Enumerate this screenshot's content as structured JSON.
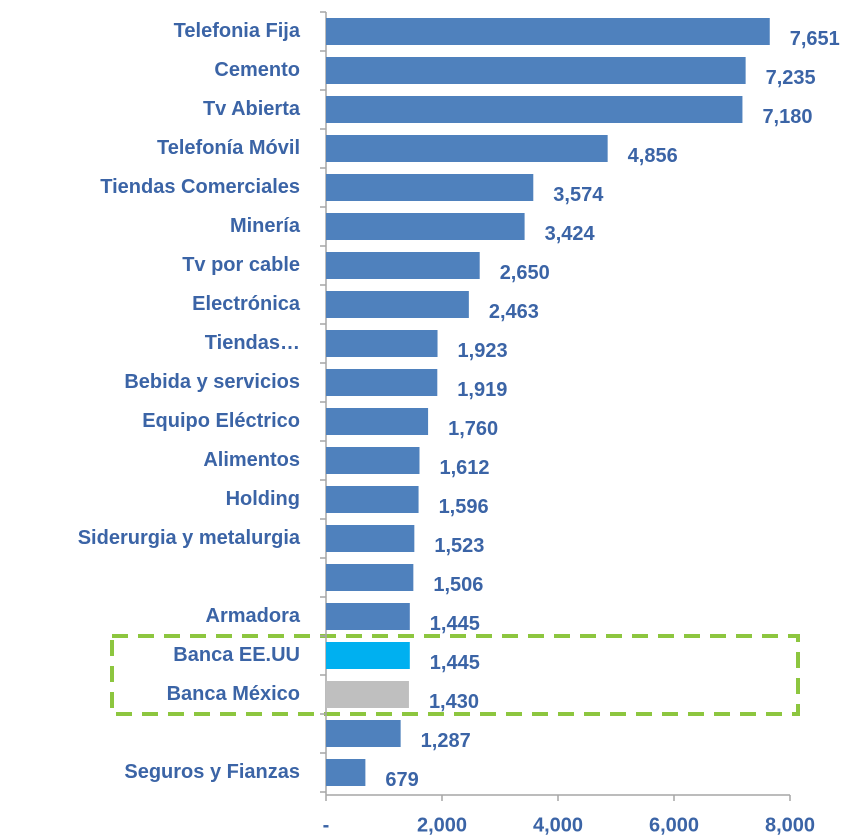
{
  "chart_data": {
    "type": "barh",
    "categories": [
      "Telefonia Fija",
      "Cemento",
      "Tv Abierta",
      "Telefonía Móvil",
      "Tiendas Comerciales",
      "Minería",
      "Tv por cable",
      "Electrónica",
      "Tiendas…",
      "Bebida y servicios",
      "Equipo Eléctrico",
      "Alimentos",
      "Holding",
      "Siderurgia y metalurgia",
      null,
      "Armadora",
      "Banca EE.UU",
      "Banca México",
      null,
      "Seguros y Fianzas"
    ],
    "values": [
      7651,
      7235,
      7180,
      4856,
      3574,
      3424,
      2650,
      2463,
      1923,
      1919,
      1760,
      1612,
      1596,
      1523,
      1506,
      1445,
      1445,
      1430,
      1287,
      679
    ],
    "value_labels": [
      "7,651",
      "7,235",
      "7,180",
      "4,856",
      "3,574",
      "3,424",
      "2,650",
      "2,463",
      "1,923",
      "1,919",
      "1,760",
      "1,612",
      "1,596",
      "1,523",
      "1,506",
      "1,445",
      "1,445",
      "1,430",
      "1,287",
      "679"
    ],
    "colors": [
      "#4f81bd",
      "#4f81bd",
      "#4f81bd",
      "#4f81bd",
      "#4f81bd",
      "#4f81bd",
      "#4f81bd",
      "#4f81bd",
      "#4f81bd",
      "#4f81bd",
      "#4f81bd",
      "#4f81bd",
      "#4f81bd",
      "#4f81bd",
      "#4f81bd",
      "#4f81bd",
      "#00b0f0",
      "#bfbfbf",
      "#4f81bd",
      "#4f81bd"
    ],
    "xlim": [
      0,
      8000
    ],
    "xticks": [
      {
        "value": 0,
        "label": "-"
      },
      {
        "value": 2000,
        "label": "2,000"
      },
      {
        "value": 4000,
        "label": "4,000"
      },
      {
        "value": 6000,
        "label": "6,000"
      },
      {
        "value": 8000,
        "label": "8,000"
      }
    ]
  }
}
